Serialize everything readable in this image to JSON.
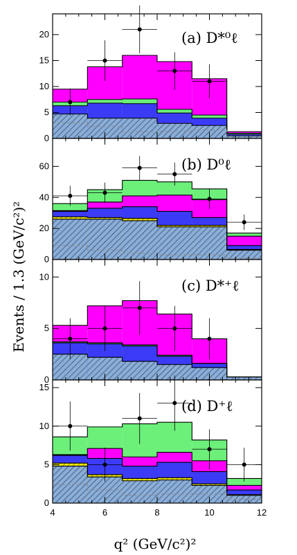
{
  "figure": {
    "ylabel": "Events / 1.3 (GeV/c²)²",
    "xlabel": "q² (GeV/c²)²",
    "xticks": [
      "4",
      "6",
      "8",
      "10",
      "12"
    ]
  },
  "colors": {
    "magenta": "#ff00ff",
    "green": "#6cf07a",
    "blue": "#3b3bf5",
    "hatch_fill": "#8aaed6",
    "hatch_line": "#2c3f6e",
    "yellow": "#f2e600",
    "outline": "#000000",
    "dashed": "#8a8a8a"
  },
  "chart_data": [
    {
      "type": "bar",
      "panel_label": "(a) D*⁰ℓ",
      "bin_edges": [
        4.0,
        5.333,
        6.667,
        8.0,
        9.333,
        10.667,
        12.0
      ],
      "xlim": [
        4,
        12
      ],
      "ylim": [
        0,
        24
      ],
      "yticks": [
        0,
        5,
        10,
        15,
        20
      ],
      "stack": [
        {
          "component": "hatched",
          "values": [
            4.7,
            3.9,
            3.9,
            2.9,
            2.5,
            0.5
          ]
        },
        {
          "component": "blue",
          "values": [
            6.3,
            6.8,
            6.7,
            4.9,
            3.9,
            0.8
          ]
        },
        {
          "component": "green",
          "values": [
            7.0,
            7.5,
            7.6,
            5.6,
            4.5,
            1.0
          ]
        },
        {
          "component": "magenta",
          "values": [
            9.5,
            13.8,
            16.0,
            14.8,
            11.5,
            1.3
          ]
        }
      ],
      "dashed": [
        3.0,
        2.3,
        1.3,
        1.4,
        1.6,
        0.4
      ],
      "points": [
        {
          "x": 4.67,
          "y": 7.0,
          "yerr": 2.6
        },
        {
          "x": 6.0,
          "y": 15.0,
          "yerr": 3.9
        },
        {
          "x": 7.33,
          "y": 21.0,
          "yerr": 4.6
        },
        {
          "x": 8.67,
          "y": 13.0,
          "yerr": 3.6
        },
        {
          "x": 10.0,
          "y": 11.0,
          "yerr": 3.3
        }
      ]
    },
    {
      "type": "bar",
      "panel_label": "(b) D⁰ℓ",
      "bin_edges": [
        4.0,
        5.333,
        6.667,
        8.0,
        9.333,
        10.667,
        12.0
      ],
      "xlim": [
        4,
        12
      ],
      "ylim": [
        0,
        78
      ],
      "yticks": [
        0,
        20,
        40,
        60
      ],
      "stack": [
        {
          "component": "hatched",
          "values": [
            26,
            26,
            25,
            21,
            21,
            6
          ]
        },
        {
          "component": "yellow",
          "values": [
            27.5,
            27,
            26.5,
            22,
            22,
            6.5
          ]
        },
        {
          "component": "blue",
          "values": [
            31,
            33,
            34,
            31,
            27,
            9
          ]
        },
        {
          "component": "magenta",
          "values": [
            31.5,
            37,
            41,
            41.5,
            38.5,
            15
          ]
        },
        {
          "component": "green",
          "values": [
            36,
            45,
            51,
            50,
            45.5,
            17
          ]
        }
      ],
      "dashed": [
        9,
        6,
        4,
        3,
        3,
        1
      ],
      "points": [
        {
          "x": 4.67,
          "y": 41,
          "yerr": 6.5
        },
        {
          "x": 6.0,
          "y": 43,
          "yerr": 6.6
        },
        {
          "x": 7.33,
          "y": 59,
          "yerr": 7.7
        },
        {
          "x": 8.67,
          "y": 55,
          "yerr": 7.4
        },
        {
          "x": 10.0,
          "y": 39,
          "yerr": 6.3
        },
        {
          "x": 11.33,
          "y": 24,
          "yerr": 5.0
        }
      ]
    },
    {
      "type": "bar",
      "panel_label": "(c) D*⁺ℓ",
      "bin_edges": [
        4.0,
        5.333,
        6.667,
        8.0,
        9.333,
        10.667,
        12.0
      ],
      "xlim": [
        4,
        12
      ],
      "ylim": [
        0,
        11.7
      ],
      "yticks": [
        0,
        5,
        10
      ],
      "stack": [
        {
          "component": "hatched",
          "values": [
            2.5,
            2.2,
            1.8,
            1.5,
            1.2,
            0.3
          ]
        },
        {
          "component": "blue",
          "values": [
            3.6,
            3.5,
            3.3,
            2.3,
            1.6,
            0.3
          ]
        },
        {
          "component": "green",
          "values": [
            3.7,
            3.6,
            3.4,
            2.4,
            1.6,
            0.3
          ]
        },
        {
          "component": "magenta",
          "values": [
            5.3,
            7.2,
            7.7,
            6.4,
            4.0,
            0.3
          ]
        }
      ],
      "dashed": [
        0,
        0,
        0,
        0,
        0,
        0
      ],
      "points": [
        {
          "x": 4.67,
          "y": 4.0,
          "yerr": 2.0
        },
        {
          "x": 6.0,
          "y": 5.0,
          "yerr": 2.2
        },
        {
          "x": 7.33,
          "y": 7.0,
          "yerr": 2.6
        },
        {
          "x": 8.67,
          "y": 5.0,
          "yerr": 2.2
        },
        {
          "x": 10.0,
          "y": 4.0,
          "yerr": 2.0
        }
      ]
    },
    {
      "type": "bar",
      "panel_label": "(d) D⁺ℓ",
      "bin_edges": [
        4.0,
        5.333,
        6.667,
        8.0,
        9.333,
        10.667,
        12.0
      ],
      "xlim": [
        4,
        12
      ],
      "ylim": [
        0,
        16
      ],
      "yticks": [
        0,
        5,
        10,
        15
      ],
      "stack": [
        {
          "component": "hatched",
          "values": [
            4.8,
            3.4,
            2.9,
            3.0,
            2.3,
            1.0
          ]
        },
        {
          "component": "yellow",
          "values": [
            5.2,
            3.7,
            3.2,
            3.3,
            2.5,
            1.1
          ]
        },
        {
          "component": "blue",
          "values": [
            6.2,
            5.8,
            4.8,
            5.3,
            4.1,
            1.7
          ]
        },
        {
          "component": "magenta",
          "values": [
            6.3,
            7.1,
            6.0,
            6.6,
            5.5,
            2.3
          ]
        },
        {
          "component": "green",
          "values": [
            8.6,
            9.9,
            10.3,
            10.5,
            8.2,
            3.2
          ]
        }
      ],
      "dashed": [
        2.4,
        1.7,
        1.0,
        1.2,
        1.2,
        0.5
      ],
      "points": [
        {
          "x": 4.67,
          "y": 10.0,
          "yerr": 3.2
        },
        {
          "x": 6.0,
          "y": 5.0,
          "yerr": 2.2
        },
        {
          "x": 7.33,
          "y": 11.0,
          "yerr": 3.3
        },
        {
          "x": 8.67,
          "y": 13.0,
          "yerr": 3.6
        },
        {
          "x": 10.0,
          "y": 7.0,
          "yerr": 2.6
        },
        {
          "x": 11.33,
          "y": 5.0,
          "yerr": 2.2
        }
      ]
    }
  ]
}
